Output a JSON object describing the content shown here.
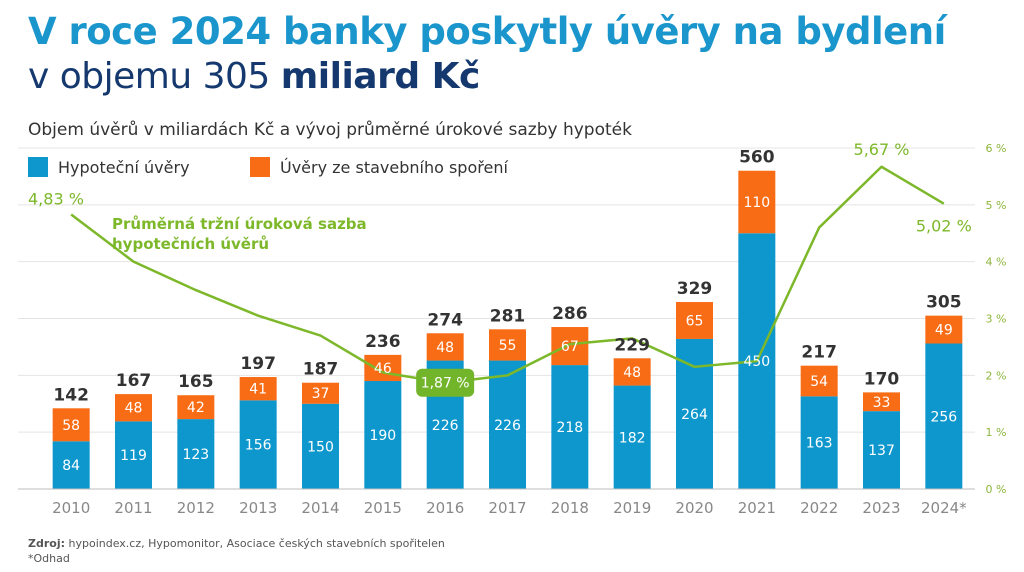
{
  "header": {
    "title_line1": "V roce 2024 banky poskytly úvěry na bydlení",
    "title_line2_regular": "v objemu 305 ",
    "title_line2_bold": "miliard Kč",
    "subtitle": "Objem úvěrů v miliardách Kč a vývoj průměrné úrokové sazby hypoték"
  },
  "legend": {
    "mortgage": "Hypoteční úvěry",
    "savings": "Úvěry ze stavebního spoření"
  },
  "colors": {
    "mortgage": "#0e97cd",
    "savings": "#f96c16",
    "rate_line": "#7db82a",
    "highlight_box": "#72b52a",
    "total_label": "#333333",
    "axis_text": "#888888",
    "rate_axis_text": "#8db63c",
    "grid": "#e4e4e4"
  },
  "chart_data": {
    "type": "bar",
    "stacked": true,
    "categories": [
      "2010",
      "2011",
      "2012",
      "2013",
      "2014",
      "2015",
      "2016",
      "2017",
      "2018",
      "2019",
      "2020",
      "2021",
      "2022",
      "2023",
      "2024*"
    ],
    "series": [
      {
        "name": "Hypoteční úvěry",
        "values": [
          84,
          119,
          123,
          156,
          150,
          190,
          226,
          226,
          218,
          182,
          264,
          450,
          163,
          137,
          256
        ]
      },
      {
        "name": "Úvěry ze stavebního spoření",
        "values": [
          58,
          48,
          42,
          41,
          37,
          46,
          48,
          55,
          67,
          48,
          65,
          110,
          54,
          33,
          49
        ]
      }
    ],
    "totals": [
      142,
      167,
      165,
      197,
      187,
      236,
      274,
      281,
      286,
      229,
      329,
      560,
      217,
      170,
      305
    ],
    "ylim": [
      0,
      600
    ],
    "line_series": {
      "name": "Průměrná tržní úroková sazba hypotečních úvěrů",
      "axis": "right",
      "values": [
        4.83,
        4.0,
        3.5,
        3.05,
        2.7,
        2.05,
        1.87,
        2.0,
        2.55,
        2.65,
        2.15,
        2.25,
        4.6,
        5.67,
        5.02
      ],
      "labels": {
        "0": "4,83 %",
        "6": "1,87 %",
        "13": "5,67 %",
        "14": "5,02 %"
      }
    },
    "right_axis": {
      "ylim": [
        0,
        6
      ],
      "ticks": [
        "0 %",
        "1 %",
        "2 %",
        "3 %",
        "4 %",
        "5 %",
        "6 %"
      ]
    },
    "grid": true,
    "legend_position": "top-left"
  },
  "footer": {
    "source_label": "Zdroj:",
    "source_text": " hypoindex.cz, Hypomonitor, Asociace českých stavebních spořitelen",
    "note": "*Odhad"
  }
}
